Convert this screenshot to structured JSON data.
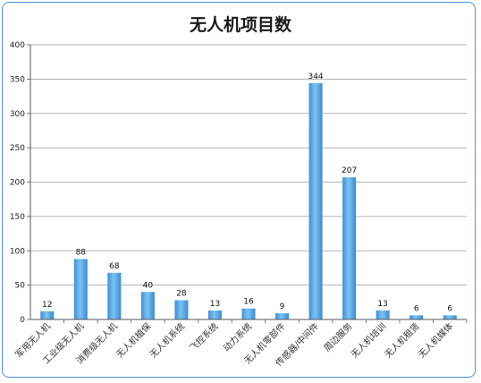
{
  "chart_data": {
    "type": "bar",
    "title": "无人机项目数",
    "xlabel": "",
    "ylabel": "",
    "ylim": [
      0,
      400
    ],
    "yticks": [
      0,
      50,
      100,
      150,
      200,
      250,
      300,
      350,
      400
    ],
    "grid": true,
    "legend": "none",
    "categories": [
      "军用无人机",
      "工业级无人机",
      "消费级无人机",
      "无人机植保",
      "无人机系统",
      "飞控系统",
      "动力系统",
      "无人机零部件",
      "传感器/中间件",
      "周边服务",
      "无人机培训",
      "无人机租赁",
      "无人机媒体"
    ],
    "values": [
      12,
      88,
      68,
      40,
      28,
      13,
      16,
      9,
      344,
      207,
      13,
      6,
      6
    ],
    "bar_color": "#4a9fe0"
  }
}
